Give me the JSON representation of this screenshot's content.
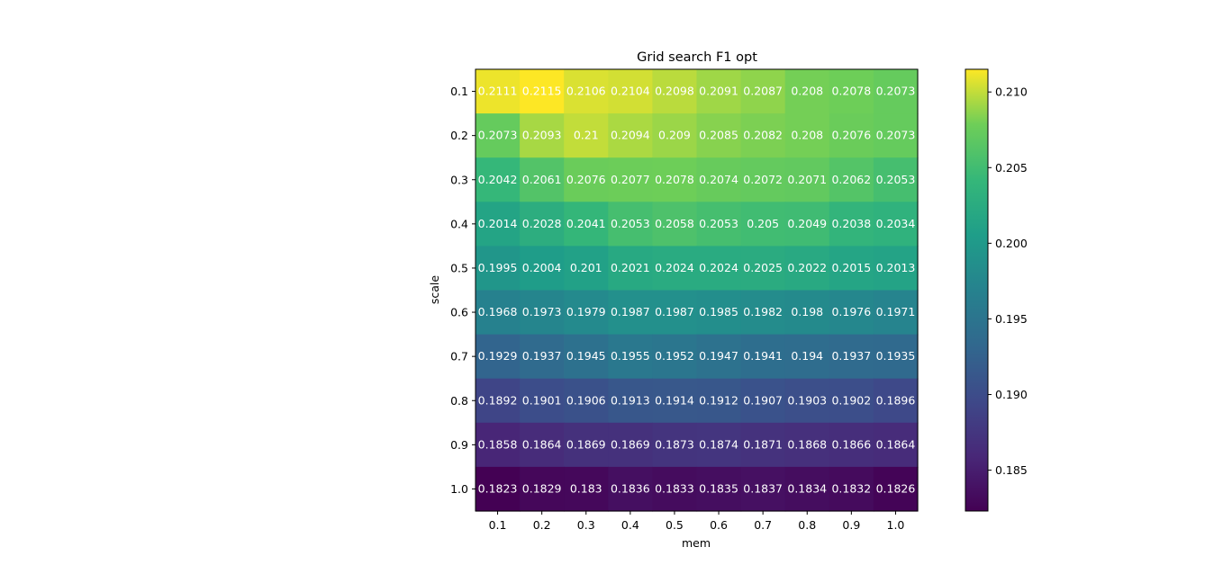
{
  "chart_data": {
    "type": "heatmap",
    "title": "Grid search F1 opt",
    "xlabel": "mem",
    "ylabel": "scale",
    "x": [
      "0.1",
      "0.2",
      "0.3",
      "0.4",
      "0.5",
      "0.6",
      "0.7",
      "0.8",
      "0.9",
      "1.0"
    ],
    "y": [
      "0.1",
      "0.2",
      "0.3",
      "0.4",
      "0.5",
      "0.6",
      "0.7",
      "0.8",
      "0.9",
      "1.0"
    ],
    "values": [
      [
        "0.2111",
        "0.2115",
        "0.2106",
        "0.2104",
        "0.2098",
        "0.2091",
        "0.2087",
        "0.208",
        "0.2078",
        "0.2073"
      ],
      [
        "0.2073",
        "0.2093",
        "0.21",
        "0.2094",
        "0.209",
        "0.2085",
        "0.2082",
        "0.208",
        "0.2076",
        "0.2073"
      ],
      [
        "0.2042",
        "0.2061",
        "0.2076",
        "0.2077",
        "0.2078",
        "0.2074",
        "0.2072",
        "0.2071",
        "0.2062",
        "0.2053"
      ],
      [
        "0.2014",
        "0.2028",
        "0.2041",
        "0.2053",
        "0.2058",
        "0.2053",
        "0.205",
        "0.2049",
        "0.2038",
        "0.2034"
      ],
      [
        "0.1995",
        "0.2004",
        "0.201",
        "0.2021",
        "0.2024",
        "0.2024",
        "0.2025",
        "0.2022",
        "0.2015",
        "0.2013"
      ],
      [
        "0.1968",
        "0.1973",
        "0.1979",
        "0.1987",
        "0.1987",
        "0.1985",
        "0.1982",
        "0.198",
        "0.1976",
        "0.1971"
      ],
      [
        "0.1929",
        "0.1937",
        "0.1945",
        "0.1955",
        "0.1952",
        "0.1947",
        "0.1941",
        "0.194",
        "0.1937",
        "0.1935"
      ],
      [
        "0.1892",
        "0.1901",
        "0.1906",
        "0.1913",
        "0.1914",
        "0.1912",
        "0.1907",
        "0.1903",
        "0.1902",
        "0.1896"
      ],
      [
        "0.1858",
        "0.1864",
        "0.1869",
        "0.1869",
        "0.1873",
        "0.1874",
        "0.1871",
        "0.1868",
        "0.1866",
        "0.1864"
      ],
      [
        "0.1823",
        "0.1829",
        "0.183",
        "0.1836",
        "0.1833",
        "0.1835",
        "0.1837",
        "0.1834",
        "0.1832",
        "0.1826"
      ]
    ],
    "colormap": "viridis",
    "color_range": [
      0.1823,
      0.2115
    ],
    "colorbar_ticks": [
      "0.185",
      "0.190",
      "0.195",
      "0.200",
      "0.205",
      "0.210"
    ],
    "colorbar_position": "right",
    "grid": false
  }
}
